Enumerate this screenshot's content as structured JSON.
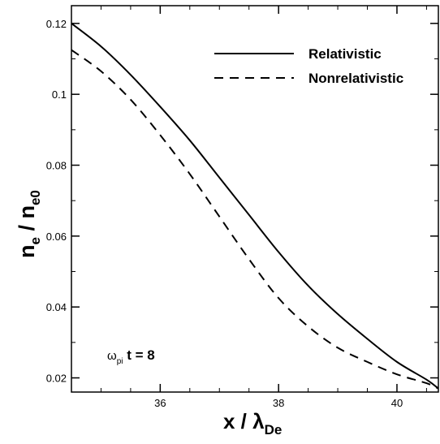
{
  "chart_data": {
    "type": "line",
    "xlabel": {
      "main": "x / λ",
      "sub": "De"
    },
    "ylabel": {
      "main": "n",
      "sub1": "e",
      "sep": " / n",
      "sub2": "e0"
    },
    "xlim": [
      34.5,
      40.7
    ],
    "ylim": [
      0.016,
      0.125
    ],
    "x_ticks": [
      {
        "value": 36,
        "label": "36"
      },
      {
        "value": 38,
        "label": "38"
      },
      {
        "value": 40,
        "label": "40"
      }
    ],
    "y_ticks": [
      {
        "value": 0.02,
        "label": "0.02"
      },
      {
        "value": 0.04,
        "label": "0.04"
      },
      {
        "value": 0.06,
        "label": "0.06"
      },
      {
        "value": 0.08,
        "label": "0.08"
      },
      {
        "value": 0.1,
        "label": "0.1"
      },
      {
        "value": 0.12,
        "label": "0.12"
      }
    ],
    "x_minor_step": 0.5,
    "y_minor_step": 0.01,
    "series": [
      {
        "name": "Relativistic",
        "style": "solid",
        "color": "#000000",
        "x": [
          34.5,
          35.0,
          35.5,
          36.0,
          36.5,
          37.0,
          37.5,
          38.0,
          38.5,
          39.0,
          39.5,
          40.0,
          40.5,
          40.7
        ],
        "y": [
          0.12,
          0.1135,
          0.1055,
          0.0965,
          0.087,
          0.0765,
          0.066,
          0.0555,
          0.046,
          0.038,
          0.031,
          0.0245,
          0.0195,
          0.017
        ]
      },
      {
        "name": "Nonrelativistic",
        "style": "dashed",
        "color": "#000000",
        "x": [
          34.5,
          35.0,
          35.5,
          36.0,
          36.5,
          37.0,
          37.5,
          38.0,
          38.5,
          39.0,
          39.5,
          40.0,
          40.5,
          40.7
        ],
        "y": [
          0.1125,
          0.1065,
          0.0985,
          0.0885,
          0.0775,
          0.0655,
          0.0535,
          0.0425,
          0.0345,
          0.0285,
          0.0245,
          0.021,
          0.0185,
          0.017
        ]
      }
    ],
    "legend_position": "top-right",
    "annotation": {
      "main": "ω",
      "sub": "pi",
      "tail": " t = 8"
    }
  }
}
